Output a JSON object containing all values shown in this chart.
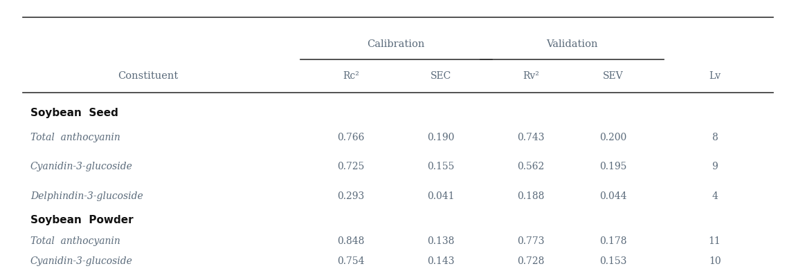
{
  "header_group1": "Calibration",
  "header_group2": "Validation",
  "col_headers": [
    "Rc²",
    "SEC",
    "Rv²",
    "SEV",
    "Lv"
  ],
  "col_constituent": "Constituent",
  "section1_header": "Soybean  Seed",
  "section1_rows": [
    [
      "Total  anthocyanin",
      "0.766",
      "0.190",
      "0.743",
      "0.200",
      "8"
    ],
    [
      "Cyanidin-3-glucoside",
      "0.725",
      "0.155",
      "0.562",
      "0.195",
      "9"
    ],
    [
      "Delphindin-3-glucoside",
      "0.293",
      "0.041",
      "0.188",
      "0.044",
      "4"
    ]
  ],
  "section2_header": "Soybean  Powder",
  "section2_rows": [
    [
      "Total  anthocyanin",
      "0.848",
      "0.138",
      "0.773",
      "0.178",
      "11"
    ],
    [
      "Cyanidin-3-glucoside",
      "0.754",
      "0.143",
      "0.728",
      "0.153",
      "10"
    ]
  ],
  "text_color": "#5a6a7a",
  "line_color": "#333333",
  "bg_color": "#ffffff",
  "font_size_header": 10.5,
  "font_size_data": 10,
  "font_size_section": 11
}
